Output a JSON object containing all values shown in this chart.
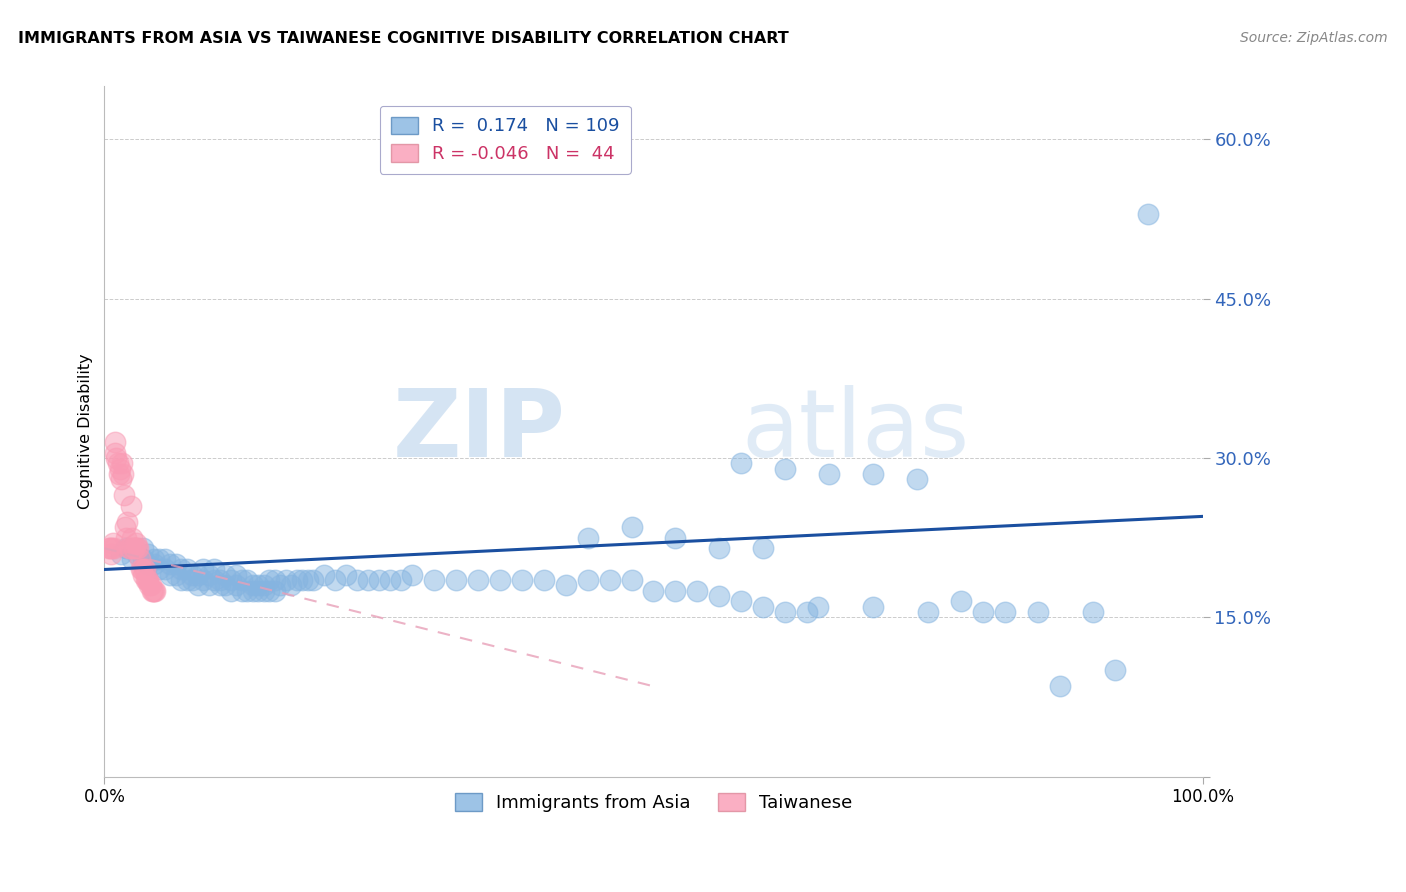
{
  "title": "IMMIGRANTS FROM ASIA VS TAIWANESE COGNITIVE DISABILITY CORRELATION CHART",
  "source": "Source: ZipAtlas.com",
  "ylabel": "Cognitive Disability",
  "watermark_zip": "ZIP",
  "watermark_atlas": "atlas",
  "y_ticks": [
    0.0,
    0.15,
    0.3,
    0.45,
    0.6
  ],
  "y_tick_labels": [
    "",
    "15.0%",
    "30.0%",
    "45.0%",
    "60.0%"
  ],
  "x_ticks": [
    0.0,
    1.0
  ],
  "x_tick_labels": [
    "0.0%",
    "100.0%"
  ],
  "x_min": 0.0,
  "x_max": 1.0,
  "y_min": 0.0,
  "y_max": 0.65,
  "blue_R": 0.174,
  "blue_N": 109,
  "pink_R": -0.046,
  "pink_N": 44,
  "blue_scatter_color": "#85B4E0",
  "pink_scatter_color": "#F99BB4",
  "blue_line_color": "#1A4FA0",
  "pink_line_color": "#E8A0B8",
  "grid_color": "#CCCCCC",
  "tick_label_color": "#3366BB",
  "blue_trend_x0": 0.0,
  "blue_trend_y0": 0.195,
  "blue_trend_x1": 1.0,
  "blue_trend_y1": 0.245,
  "pink_trend_x0": 0.0,
  "pink_trend_y0": 0.215,
  "pink_trend_x1": 0.5,
  "pink_trend_y1": 0.085,
  "blue_scatter_x": [
    0.015,
    0.02,
    0.025,
    0.03,
    0.035,
    0.035,
    0.04,
    0.04,
    0.045,
    0.045,
    0.05,
    0.05,
    0.055,
    0.055,
    0.06,
    0.06,
    0.065,
    0.065,
    0.07,
    0.07,
    0.075,
    0.075,
    0.08,
    0.08,
    0.085,
    0.085,
    0.09,
    0.09,
    0.095,
    0.095,
    0.1,
    0.1,
    0.105,
    0.105,
    0.11,
    0.11,
    0.115,
    0.115,
    0.12,
    0.12,
    0.125,
    0.125,
    0.13,
    0.13,
    0.135,
    0.135,
    0.14,
    0.14,
    0.145,
    0.145,
    0.15,
    0.15,
    0.155,
    0.155,
    0.16,
    0.165,
    0.17,
    0.175,
    0.18,
    0.185,
    0.19,
    0.2,
    0.21,
    0.22,
    0.23,
    0.24,
    0.25,
    0.26,
    0.27,
    0.28,
    0.3,
    0.32,
    0.34,
    0.36,
    0.38,
    0.4,
    0.42,
    0.44,
    0.46,
    0.48,
    0.5,
    0.52,
    0.54,
    0.56,
    0.58,
    0.6,
    0.62,
    0.64,
    0.44,
    0.48,
    0.52,
    0.56,
    0.6,
    0.65,
    0.7,
    0.75,
    0.8,
    0.85,
    0.9,
    0.58,
    0.62,
    0.66,
    0.7,
    0.74,
    0.78,
    0.82,
    0.87,
    0.92,
    0.95
  ],
  "blue_scatter_y": [
    0.21,
    0.215,
    0.205,
    0.21,
    0.205,
    0.215,
    0.2,
    0.21,
    0.2,
    0.205,
    0.195,
    0.205,
    0.195,
    0.205,
    0.19,
    0.2,
    0.19,
    0.2,
    0.185,
    0.195,
    0.185,
    0.195,
    0.185,
    0.19,
    0.18,
    0.19,
    0.185,
    0.195,
    0.18,
    0.19,
    0.185,
    0.195,
    0.18,
    0.185,
    0.18,
    0.19,
    0.175,
    0.185,
    0.18,
    0.19,
    0.175,
    0.185,
    0.175,
    0.185,
    0.175,
    0.18,
    0.175,
    0.18,
    0.175,
    0.18,
    0.175,
    0.185,
    0.175,
    0.185,
    0.18,
    0.185,
    0.18,
    0.185,
    0.185,
    0.185,
    0.185,
    0.19,
    0.185,
    0.19,
    0.185,
    0.185,
    0.185,
    0.185,
    0.185,
    0.19,
    0.185,
    0.185,
    0.185,
    0.185,
    0.185,
    0.185,
    0.18,
    0.185,
    0.185,
    0.185,
    0.175,
    0.175,
    0.175,
    0.17,
    0.165,
    0.16,
    0.155,
    0.155,
    0.225,
    0.235,
    0.225,
    0.215,
    0.215,
    0.16,
    0.16,
    0.155,
    0.155,
    0.155,
    0.155,
    0.295,
    0.29,
    0.285,
    0.285,
    0.28,
    0.165,
    0.155,
    0.085,
    0.1,
    0.53
  ],
  "pink_scatter_x": [
    0.004,
    0.005,
    0.006,
    0.007,
    0.008,
    0.009,
    0.01,
    0.01,
    0.011,
    0.012,
    0.013,
    0.014,
    0.015,
    0.016,
    0.017,
    0.018,
    0.019,
    0.02,
    0.021,
    0.022,
    0.023,
    0.024,
    0.025,
    0.026,
    0.027,
    0.028,
    0.029,
    0.03,
    0.031,
    0.032,
    0.033,
    0.034,
    0.035,
    0.036,
    0.037,
    0.038,
    0.039,
    0.04,
    0.041,
    0.042,
    0.043,
    0.044,
    0.045,
    0.046
  ],
  "pink_scatter_y": [
    0.215,
    0.215,
    0.21,
    0.215,
    0.22,
    0.215,
    0.305,
    0.315,
    0.3,
    0.295,
    0.285,
    0.29,
    0.28,
    0.295,
    0.285,
    0.265,
    0.235,
    0.225,
    0.24,
    0.215,
    0.215,
    0.255,
    0.225,
    0.215,
    0.215,
    0.215,
    0.22,
    0.215,
    0.215,
    0.205,
    0.195,
    0.195,
    0.19,
    0.195,
    0.195,
    0.185,
    0.185,
    0.185,
    0.18,
    0.18,
    0.175,
    0.175,
    0.175,
    0.175
  ]
}
